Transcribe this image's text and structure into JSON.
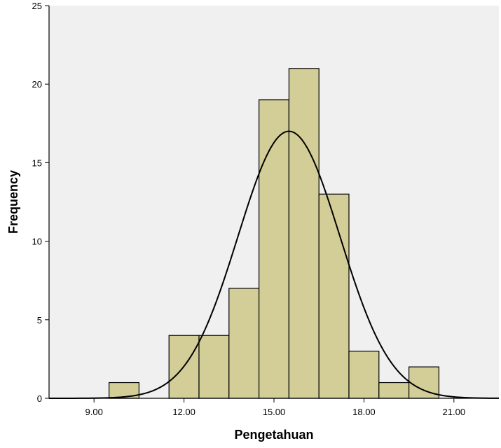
{
  "chart_data": {
    "type": "bar",
    "subtype": "histogram",
    "title": "",
    "xlabel": "Pengetahuan",
    "ylabel": "Frequency",
    "xlim": [
      7.5,
      22.5
    ],
    "ylim": [
      0,
      25
    ],
    "x_ticks": [
      {
        "value": 9,
        "label": "9.00"
      },
      {
        "value": 12,
        "label": "12.00"
      },
      {
        "value": 15,
        "label": "15.00"
      },
      {
        "value": 18,
        "label": "18.00"
      },
      {
        "value": 21,
        "label": "21.00"
      }
    ],
    "y_ticks": [
      {
        "value": 0,
        "label": "0"
      },
      {
        "value": 5,
        "label": "5"
      },
      {
        "value": 10,
        "label": "10"
      },
      {
        "value": 15,
        "label": "15"
      },
      {
        "value": 20,
        "label": "20"
      },
      {
        "value": 25,
        "label": "25"
      }
    ],
    "bins": [
      {
        "start": 9.5,
        "end": 10.5,
        "count": 1
      },
      {
        "start": 10.5,
        "end": 11.5,
        "count": 0
      },
      {
        "start": 11.5,
        "end": 12.5,
        "count": 4
      },
      {
        "start": 12.5,
        "end": 13.5,
        "count": 4
      },
      {
        "start": 13.5,
        "end": 14.5,
        "count": 7
      },
      {
        "start": 14.5,
        "end": 15.5,
        "count": 19
      },
      {
        "start": 15.5,
        "end": 16.5,
        "count": 21
      },
      {
        "start": 16.5,
        "end": 17.5,
        "count": 13
      },
      {
        "start": 17.5,
        "end": 18.5,
        "count": 3
      },
      {
        "start": 18.5,
        "end": 19.5,
        "count": 1
      },
      {
        "start": 19.5,
        "end": 20.5,
        "count": 2
      }
    ],
    "normal_curve": {
      "mean": 15.5,
      "sd": 1.7,
      "peak": 17
    },
    "grid": false,
    "colors": {
      "plot_background": "#f0f0f0",
      "bar_fill": "#d3ce97",
      "bar_stroke": "#000000",
      "curve": "#000000"
    }
  }
}
